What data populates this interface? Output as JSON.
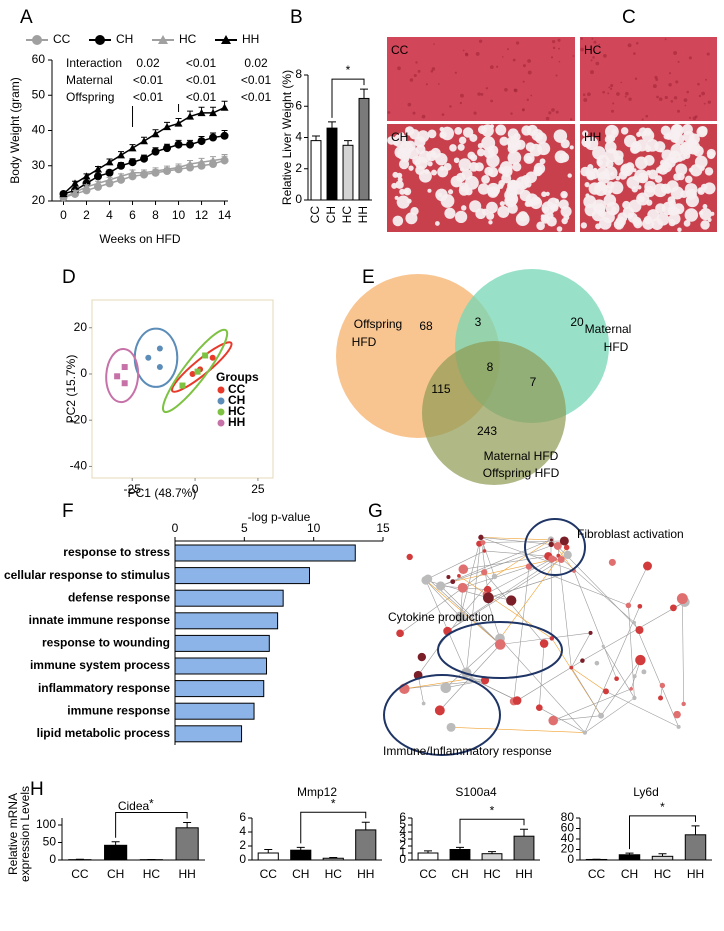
{
  "chart_data": [
    {
      "panel": "A",
      "type": "line",
      "x": [
        0,
        1,
        2,
        3,
        4,
        5,
        6,
        7,
        8,
        9,
        10,
        11,
        12,
        13,
        14
      ],
      "series": [
        {
          "name": "CC",
          "color": "#a0a0a0",
          "marker": "circle",
          "values": [
            21,
            22,
            23,
            24,
            25,
            26,
            27,
            27.5,
            28,
            28.5,
            29,
            29.5,
            30,
            30.5,
            31.5
          ],
          "errors": [
            0.5,
            0.5,
            0.6,
            0.6,
            0.7,
            0.7,
            0.8,
            0.8,
            0.9,
            0.9,
            1,
            1,
            1.1,
            1.1,
            1.2
          ]
        },
        {
          "name": "CH",
          "color": "#000000",
          "marker": "circle",
          "values": [
            22,
            23,
            25,
            27,
            28,
            30,
            31,
            32,
            34,
            35,
            36,
            36,
            37,
            38,
            38.5
          ],
          "errors": [
            0.5,
            0.6,
            0.7,
            0.7,
            0.8,
            0.9,
            1,
            1,
            1.1,
            1.1,
            1.2,
            1.2,
            1.3,
            1.3,
            1.5
          ]
        },
        {
          "name": "HC",
          "color": "#a0a0a0",
          "marker": "triangle",
          "values": [
            21,
            22.5,
            24,
            25,
            26,
            27,
            28,
            28,
            28.5,
            29,
            29.5,
            30.5,
            31,
            31.5,
            32
          ],
          "errors": [
            0.5,
            0.5,
            0.6,
            0.6,
            0.7,
            0.7,
            0.8,
            0.8,
            0.9,
            0.9,
            1,
            1,
            1.1,
            1.1,
            1.2
          ]
        },
        {
          "name": "HH",
          "color": "#000000",
          "marker": "triangle",
          "values": [
            22,
            25,
            27,
            29,
            31,
            33,
            35,
            37,
            39,
            41,
            42,
            44,
            45,
            45,
            46.5
          ],
          "errors": [
            0.5,
            0.6,
            0.7,
            0.8,
            0.9,
            1,
            1,
            1.1,
            1.2,
            1.3,
            1.4,
            1.5,
            1.6,
            1.6,
            1.8
          ]
        }
      ],
      "xlim": [
        -1,
        14.3
      ],
      "ylim": [
        20,
        60
      ],
      "xticks": [
        0,
        2,
        4,
        6,
        8,
        10,
        12,
        14
      ],
      "yticks": [
        20,
        30,
        40,
        50,
        60
      ],
      "xlabel": "Weeks on HFD",
      "ylabel": "Body  Weight (gram)",
      "stats": {
        "rows": [
          "Interaction",
          "Maternal",
          "Offspring"
        ],
        "columns": [
          [
            "0.02",
            "<0.01",
            "<0.01"
          ],
          [
            "<0.01",
            "<0.01",
            "<0.01"
          ],
          [
            "0.02",
            "<0.01",
            "<0.01"
          ]
        ]
      }
    },
    {
      "panel": "B",
      "type": "bar",
      "categories": [
        "CC",
        "CH",
        "HC",
        "HH"
      ],
      "values": [
        3.8,
        4.6,
        3.5,
        6.5
      ],
      "errors": [
        0.3,
        0.4,
        0.3,
        0.6
      ],
      "colors": [
        "#ffffff",
        "#000000",
        "#d4d4d4",
        "#7a7a7a"
      ],
      "ylim": [
        0,
        8
      ],
      "yticks": [
        0,
        2,
        4,
        6,
        8
      ],
      "ylabel": "Relative Liver Weight (%)",
      "significance": "*"
    },
    {
      "panel": "D",
      "type": "scatter",
      "series": [
        {
          "name": "CC",
          "color": "#e8392b",
          "marker": "circle",
          "x": [
            -1,
            7,
            2
          ],
          "values": [
            0,
            7,
            2
          ]
        },
        {
          "name": "CH",
          "color": "#5b8db8",
          "marker": "circle",
          "x": [
            -18.6,
            -14,
            -14
          ],
          "values": [
            7,
            11,
            3
          ]
        },
        {
          "name": "HC",
          "color": "#7dc242",
          "marker": "square",
          "x": [
            4,
            -5,
            1
          ],
          "values": [
            8,
            -5,
            1
          ]
        },
        {
          "name": "HH",
          "color": "#c672a8",
          "marker": "square",
          "x": [
            -28,
            -31,
            -28
          ],
          "values": [
            3,
            -1,
            -4
          ]
        }
      ],
      "xlim": [
        -41,
        31
      ],
      "ylim": [
        -45,
        32
      ],
      "xticks": [
        -25,
        0,
        25
      ],
      "yticks": [
        -40,
        -20,
        0,
        20
      ],
      "xlabel": "PC1 (48.7%)",
      "ylabel": "PC2 (15.7%)",
      "legend_title": "Groups"
    },
    {
      "panel": "F",
      "type": "barh",
      "title": "-log p-value",
      "categories": [
        "response to stress",
        "cellular response to stimulus",
        "defense response",
        "innate immune response",
        "response to wounding",
        "immune system process",
        "inflammatory response",
        "immune response",
        "lipid metabolic process"
      ],
      "values": [
        13,
        9.7,
        7.8,
        7.4,
        6.8,
        6.6,
        6.4,
        5.7,
        4.8
      ],
      "color": "#8db4e8",
      "xlim": [
        0,
        15
      ],
      "xticks": [
        0,
        5,
        10,
        15
      ]
    },
    {
      "panel": "H",
      "type": "bar",
      "title": "Cidea",
      "categories": [
        "CC",
        "CH",
        "HC",
        "HH"
      ],
      "values": [
        1,
        42,
        1,
        92
      ],
      "errors": [
        1,
        10,
        0.5,
        15
      ],
      "colors": [
        "#ffffff",
        "#000000",
        "#d4d4d4",
        "#7a7a7a"
      ],
      "ylim": [
        0,
        120
      ],
      "yticks": [
        0,
        50,
        100
      ],
      "ylabel": [
        "Relative mRNA",
        "expression Levels"
      ],
      "significance": "*"
    },
    {
      "type": "bar",
      "title": "Mmp12",
      "categories": [
        "CC",
        "CH",
        "HC",
        "HH"
      ],
      "values": [
        1.0,
        1.4,
        0.25,
        4.3
      ],
      "errors": [
        0.5,
        0.4,
        0.1,
        1.1
      ],
      "colors": [
        "#ffffff",
        "#000000",
        "#d4d4d4",
        "#7a7a7a"
      ],
      "ylim": [
        0,
        6
      ],
      "yticks": [
        0,
        2,
        4,
        6
      ],
      "significance": "*"
    },
    {
      "type": "bar",
      "title": "S100a4",
      "categories": [
        "CC",
        "CH",
        "HC",
        "HH"
      ],
      "values": [
        1.0,
        1.5,
        0.9,
        3.4
      ],
      "errors": [
        0.3,
        0.3,
        0.3,
        1.0
      ],
      "colors": [
        "#ffffff",
        "#000000",
        "#d4d4d4",
        "#7a7a7a"
      ],
      "ylim": [
        0,
        6
      ],
      "yticks": [
        0,
        1,
        2,
        3,
        4,
        5,
        6
      ],
      "significance": "*"
    },
    {
      "type": "bar",
      "title": "Ly6d",
      "categories": [
        "CC",
        "CH",
        "HC",
        "HH"
      ],
      "values": [
        1,
        10,
        7,
        48
      ],
      "errors": [
        0.5,
        3,
        5,
        17
      ],
      "colors": [
        "#ffffff",
        "#000000",
        "#d4d4d4",
        "#7a7a7a"
      ],
      "ylim": [
        0,
        80
      ],
      "yticks": [
        0,
        20,
        40,
        60,
        80
      ],
      "significance": "*"
    }
  ],
  "histology": {
    "panel": "C",
    "labels": [
      "CC",
      "HC",
      "CH",
      "HH"
    ]
  },
  "venn": {
    "panel": "E",
    "sets": [
      {
        "label": [
          "Offspring",
          "HFD"
        ],
        "color": "#f6b26b",
        "label_colors": [
          "#3a7fc1",
          "#3a7fc1"
        ]
      },
      {
        "label": [
          "Maternal",
          "HFD"
        ],
        "color": "#76d7b5",
        "label_colors": [
          "#b22222",
          "#b22222"
        ]
      },
      {
        "label": [
          "Maternal HFD",
          "Offspring HFD"
        ],
        "color": "#8f9a52",
        "label_colors": [
          "#b22222",
          "#3a7fc1"
        ]
      }
    ],
    "counts": [
      68,
      3,
      20,
      115,
      8,
      7,
      243
    ]
  },
  "network": {
    "panel": "G",
    "labels": [
      "Fibroblast activation",
      "Cytokine production",
      "Immune/Inflammatory response"
    ]
  }
}
